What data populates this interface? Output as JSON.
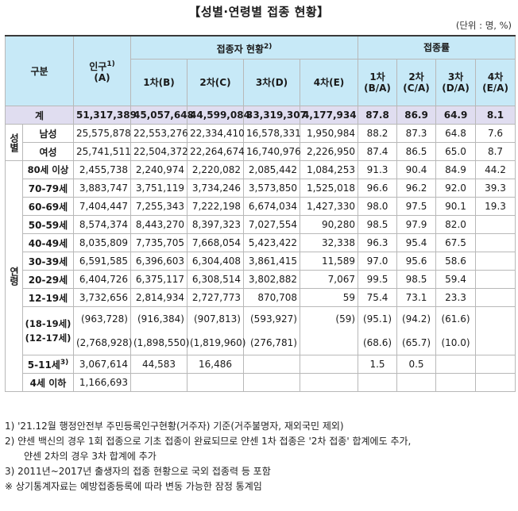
{
  "title": "【성별·연령별 접종 현황】",
  "unit": "(단위 : 명, %)",
  "headers": {
    "category": "구분",
    "population": "인구",
    "population_sup": "1)",
    "population_sub": "(A)",
    "vaccinated_group": "접종자 현황",
    "vaccinated_group_sup": "2)",
    "rate_group": "접종률",
    "d1": "1차(B)",
    "d2": "2차(C)",
    "d3": "3차(D)",
    "d4": "4차(E)",
    "r1a": "1차",
    "r1b": "(B/A)",
    "r2a": "2차",
    "r2b": "(C/A)",
    "r3a": "3차",
    "r3b": "(D/A)",
    "r4a": "4차",
    "r4b": "(E/A)"
  },
  "group_labels": {
    "sex": "성별",
    "age": "연령"
  },
  "total": {
    "label": "계",
    "pop": "51,317,389",
    "d1": "45,057,648",
    "d2": "44,599,084",
    "d3": "33,319,307",
    "d4": "4,177,934",
    "r1": "87.8",
    "r2": "86.9",
    "r3": "64.9",
    "r4": "8.1"
  },
  "sex_rows": [
    {
      "label": "남성",
      "pop": "25,575,878",
      "d1": "22,553,276",
      "d2": "22,334,410",
      "d3": "16,578,331",
      "d4": "1,950,984",
      "r1": "88.2",
      "r2": "87.3",
      "r3": "64.8",
      "r4": "7.6"
    },
    {
      "label": "여성",
      "pop": "25,741,511",
      "d1": "22,504,372",
      "d2": "22,264,674",
      "d3": "16,740,976",
      "d4": "2,226,950",
      "r1": "87.4",
      "r2": "86.5",
      "r3": "65.0",
      "r4": "8.7"
    }
  ],
  "age_rows": [
    {
      "label": "80세 이상",
      "pop": "2,455,738",
      "d1": "2,240,974",
      "d2": "2,220,082",
      "d3": "2,085,442",
      "d4": "1,084,253",
      "r1": "91.3",
      "r2": "90.4",
      "r3": "84.9",
      "r4": "44.2"
    },
    {
      "label": "70-79세",
      "pop": "3,883,747",
      "d1": "3,751,119",
      "d2": "3,734,246",
      "d3": "3,573,850",
      "d4": "1,525,018",
      "r1": "96.6",
      "r2": "96.2",
      "r3": "92.0",
      "r4": "39.3"
    },
    {
      "label": "60-69세",
      "pop": "7,404,447",
      "d1": "7,255,343",
      "d2": "7,222,198",
      "d3": "6,674,034",
      "d4": "1,427,330",
      "r1": "98.0",
      "r2": "97.5",
      "r3": "90.1",
      "r4": "19.3"
    },
    {
      "label": "50-59세",
      "pop": "8,574,374",
      "d1": "8,443,270",
      "d2": "8,397,323",
      "d3": "7,027,554",
      "d4": "90,280",
      "r1": "98.5",
      "r2": "97.9",
      "r3": "82.0",
      "r4": ""
    },
    {
      "label": "40-49세",
      "pop": "8,035,809",
      "d1": "7,735,705",
      "d2": "7,668,054",
      "d3": "5,423,422",
      "d4": "32,338",
      "r1": "96.3",
      "r2": "95.4",
      "r3": "67.5",
      "r4": ""
    },
    {
      "label": "30-39세",
      "pop": "6,591,585",
      "d1": "6,396,603",
      "d2": "6,304,408",
      "d3": "3,861,415",
      "d4": "11,589",
      "r1": "97.0",
      "r2": "95.6",
      "r3": "58.6",
      "r4": ""
    },
    {
      "label": "20-29세",
      "pop": "6,404,726",
      "d1": "6,375,117",
      "d2": "6,308,514",
      "d3": "3,802,882",
      "d4": "7,067",
      "r1": "99.5",
      "r2": "98.5",
      "r3": "59.4",
      "r4": ""
    },
    {
      "label": "12-19세",
      "pop": "3,732,656",
      "d1": "2,814,934",
      "d2": "2,727,773",
      "d3": "870,708",
      "d4": "59",
      "r1": "75.4",
      "r2": "73.1",
      "r3": "23.3",
      "r4": ""
    }
  ],
  "sub_rows": {
    "label1": "(18-19세)",
    "label2": "(12-17세)",
    "pop1": "(963,728)",
    "pop2": "(2,768,928)",
    "d1_1": "(916,384)",
    "d1_2": "(1,898,550)",
    "d2_1": "(907,813)",
    "d2_2": "(1,819,960)",
    "d3_1": "(593,927)",
    "d3_2": "(276,781)",
    "d4_1": "(59)",
    "d4_2": "",
    "r1_1": "(95.1)",
    "r1_2": "(68.6)",
    "r2_1": "(94.2)",
    "r2_2": "(65.7)",
    "r3_1": "(61.6)",
    "r3_2": "(10.0)"
  },
  "row_511": {
    "label": "5-11세",
    "sup": "3)",
    "pop": "3,067,614",
    "d1": "44,583",
    "d2": "16,486",
    "r1": "1.5",
    "r2": "0.5"
  },
  "row_u4": {
    "label": "4세 이하",
    "pop": "1,166,693"
  },
  "notes": [
    "1) '21.12월 행정안전부 주민등록인구현황(거주자) 기준(거주불명자, 재외국민 제외)",
    "2) 얀센 백신의 경우 1회 접종으로 기초 접종이 완료되므로 얀센 1차 접종은 '2차 접종' 합계에도 추가,",
    "얀센 2차의 경우 3차 합계에 추가",
    "3) 2011년~2017년 출생자의 접종 현황으로 국외 접종력 등 포함",
    "※ 상기통계자료는 예방접종등록에 따라 변동 가능한 잠정 통계임"
  ]
}
